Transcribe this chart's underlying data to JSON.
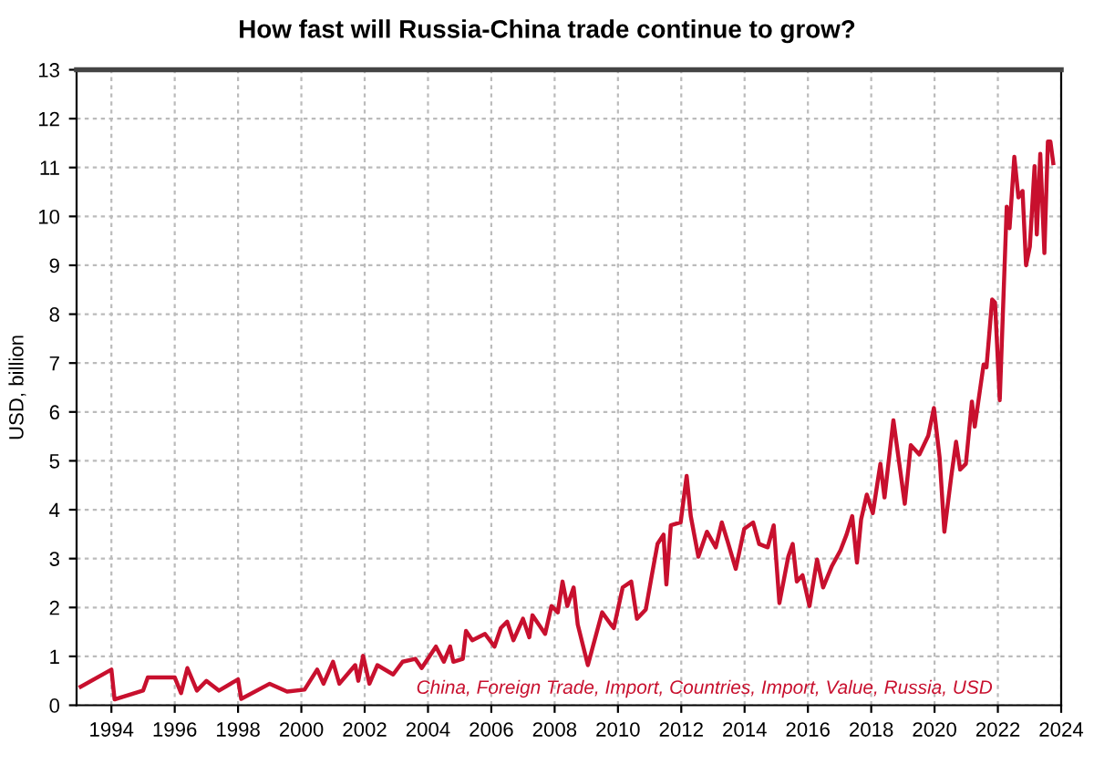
{
  "chart_data": {
    "type": "line",
    "title": "How fast will Russia-China trade continue to grow?",
    "ylabel": "USD, billion",
    "xlim": [
      1992.9,
      2024.0
    ],
    "xticks": [
      1994,
      1996,
      1998,
      2000,
      2002,
      2004,
      2006,
      2008,
      2010,
      2012,
      2014,
      2016,
      2018,
      2020,
      2022,
      2024
    ],
    "ylim": [
      0,
      13
    ],
    "yticks": [
      0,
      1,
      2,
      3,
      4,
      5,
      6,
      7,
      8,
      9,
      10,
      11,
      12,
      13
    ],
    "grid": true,
    "line_style": "solid",
    "series": [
      {
        "name": "China, Foreign Trade, Import, Countries, Import, Value, Russia, USD",
        "color": "#c8102e",
        "x": [
          1993.03,
          1994.0,
          1994.1,
          1995.0,
          1995.15,
          1996.0,
          1996.2,
          1996.4,
          1996.7,
          1997.0,
          1997.4,
          1998.0,
          1998.1,
          1999.0,
          1999.55,
          2000.1,
          2000.5,
          2000.7,
          2001.0,
          2001.2,
          2001.7,
          2001.8,
          2001.95,
          2002.15,
          2002.4,
          2002.9,
          2003.2,
          2003.6,
          2003.8,
          2004.25,
          2004.5,
          2004.7,
          2004.8,
          2005.1,
          2005.2,
          2005.4,
          2005.8,
          2006.1,
          2006.3,
          2006.5,
          2006.7,
          2007.0,
          2007.2,
          2007.3,
          2007.7,
          2007.9,
          2008.1,
          2008.25,
          2008.4,
          2008.6,
          2008.73,
          2009.05,
          2009.5,
          2009.78,
          2009.87,
          2010.15,
          2010.42,
          2010.6,
          2010.88,
          2011.07,
          2011.25,
          2011.44,
          2011.53,
          2011.67,
          2011.98,
          2012.17,
          2012.3,
          2012.54,
          2012.81,
          2013.09,
          2013.28,
          2013.46,
          2013.72,
          2013.99,
          2014.27,
          2014.46,
          2014.73,
          2014.92,
          2015.1,
          2015.38,
          2015.52,
          2015.65,
          2015.83,
          2016.05,
          2016.29,
          2016.48,
          2016.76,
          2017.03,
          2017.22,
          2017.4,
          2017.55,
          2017.68,
          2017.86,
          2018.05,
          2018.29,
          2018.42,
          2018.7,
          2019.06,
          2019.25,
          2019.52,
          2019.8,
          2019.98,
          2020.16,
          2020.31,
          2020.53,
          2020.68,
          2020.81,
          2020.99,
          2021.18,
          2021.27,
          2021.55,
          2021.64,
          2021.82,
          2021.91,
          2022.06,
          2022.28,
          2022.37,
          2022.52,
          2022.65,
          2022.78,
          2022.89,
          2023.01,
          2023.16,
          2023.23,
          2023.34,
          2023.47,
          2023.58,
          2023.66,
          2023.75
        ],
        "values": [
          0.38,
          0.73,
          0.12,
          0.3,
          0.57,
          0.57,
          0.25,
          0.76,
          0.3,
          0.5,
          0.3,
          0.53,
          0.13,
          0.44,
          0.28,
          0.32,
          0.73,
          0.44,
          0.89,
          0.44,
          0.82,
          0.5,
          1.01,
          0.44,
          0.82,
          0.63,
          0.89,
          0.95,
          0.76,
          1.2,
          0.89,
          1.2,
          0.89,
          0.95,
          1.52,
          1.33,
          1.46,
          1.2,
          1.58,
          1.71,
          1.33,
          1.77,
          1.39,
          1.84,
          1.46,
          2.03,
          1.9,
          2.53,
          2.03,
          2.41,
          1.65,
          0.82,
          1.9,
          1.65,
          1.58,
          2.41,
          2.53,
          1.77,
          1.96,
          2.66,
          3.3,
          3.49,
          2.47,
          3.68,
          3.74,
          4.69,
          3.87,
          3.04,
          3.55,
          3.23,
          3.74,
          3.36,
          2.79,
          3.61,
          3.74,
          3.3,
          3.23,
          3.68,
          2.09,
          3.04,
          3.3,
          2.53,
          2.66,
          2.03,
          2.98,
          2.41,
          2.85,
          3.17,
          3.49,
          3.87,
          2.92,
          3.8,
          4.31,
          3.93,
          4.94,
          4.25,
          5.83,
          4.12,
          5.32,
          5.13,
          5.51,
          6.08,
          5.07,
          3.55,
          4.69,
          5.39,
          4.82,
          4.94,
          6.21,
          5.7,
          6.97,
          6.91,
          8.3,
          8.24,
          6.24,
          10.2,
          9.76,
          11.22,
          10.39,
          10.52,
          9.0,
          9.38,
          11.03,
          9.63,
          11.28,
          9.25,
          11.53,
          11.53,
          11.09
        ]
      }
    ]
  }
}
